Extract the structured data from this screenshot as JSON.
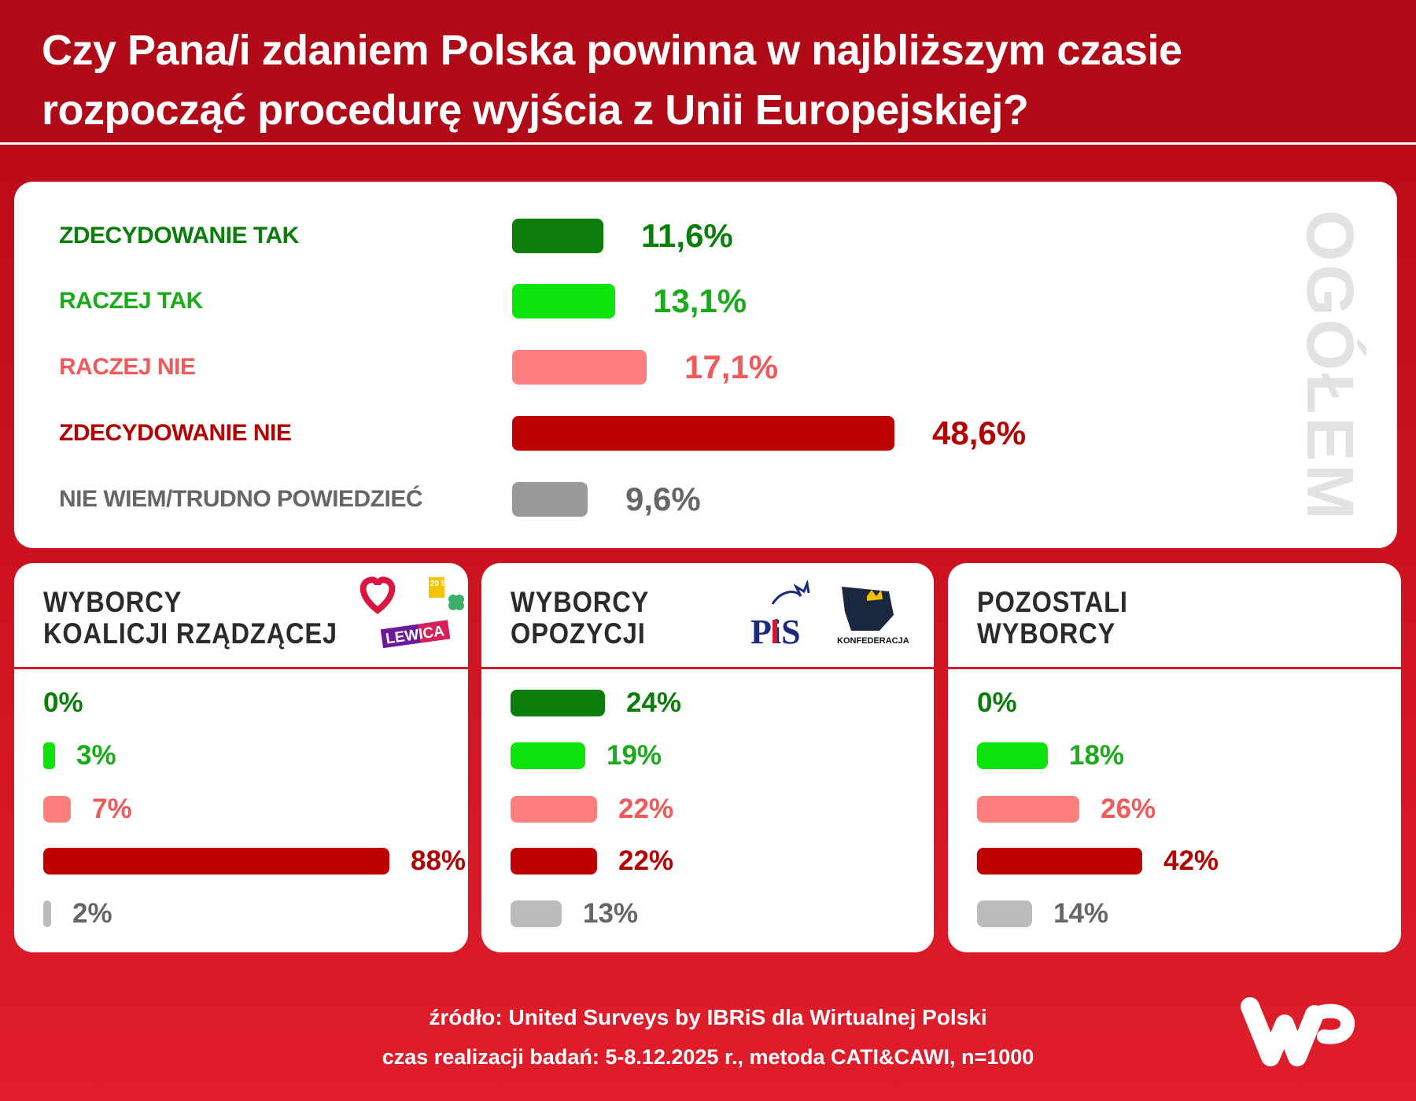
{
  "title_line1": "Czy Pana/i zdaniem Polska powinna w najbliższym czasie",
  "title_line2": "rozpocząć procedurę wyjścia z Unii Europejskiej?",
  "colors": {
    "zdecydowanie_tak": "#0b7d0b",
    "raczej_tak": "#0ce40c",
    "raczej_nie": "#ff7f7f",
    "zdecydowanie_nie": "#be0000",
    "nie_wiem": "#999999",
    "nie_wiem_sub": "#bbbbbb"
  },
  "chart_data": [
    {
      "type": "bar",
      "title": "OGÓŁEM",
      "categories": [
        "ZDECYDOWANIE TAK",
        "RACZEJ TAK",
        "RACZEJ NIE",
        "ZDECYDOWANIE NIE",
        "NIE WIEM/TRUDNO POWIEDZIEĆ"
      ],
      "values": [
        11.6,
        13.1,
        17.1,
        48.6,
        9.6
      ],
      "labels": [
        "11,6%",
        "13,1%",
        "17,1%",
        "48,6%",
        "9,6%"
      ],
      "orientation": "horizontal"
    },
    {
      "type": "bar",
      "title": "WYBORCY KOALICJI RZĄDZĄCEJ",
      "title_lines": [
        "WYBORCY",
        "KOALICJI RZĄDZĄCEJ"
      ],
      "logos": [
        "KO heart",
        "Polska 2050",
        "PSL clover",
        "LEWICA"
      ],
      "values": [
        0,
        3,
        7,
        88,
        2
      ],
      "labels": [
        "0%",
        "3%",
        "7%",
        "88%",
        "2%"
      ],
      "orientation": "horizontal"
    },
    {
      "type": "bar",
      "title": "WYBORCY OPOZYCJI",
      "title_lines": [
        "WYBORCY",
        "OPOZYCJI"
      ],
      "logos": [
        "PiS",
        "KONFEDERACJA"
      ],
      "values": [
        24,
        19,
        22,
        22,
        13
      ],
      "labels": [
        "24%",
        "19%",
        "22%",
        "22%",
        "13%"
      ],
      "orientation": "horizontal"
    },
    {
      "type": "bar",
      "title": "POZOSTALI WYBORCY",
      "title_lines": [
        "POZOSTALI",
        "WYBORCY"
      ],
      "values": [
        0,
        18,
        26,
        42,
        14
      ],
      "labels": [
        "0%",
        "18%",
        "26%",
        "42%",
        "14%"
      ],
      "orientation": "horizontal"
    }
  ],
  "logo_texts": {
    "lewica": "LEWICA",
    "pis": "PiS",
    "konfederacja": "KONFEDERACJA",
    "p2050": "20 50"
  },
  "footer": {
    "source": "źródło: United Surveys by IBRiS dla Wirtualnej Polski",
    "details": "czas realizacji badań: 5-8.12.2025 r., metoda CATI&CAWI, n=1000"
  },
  "brand": "WP"
}
